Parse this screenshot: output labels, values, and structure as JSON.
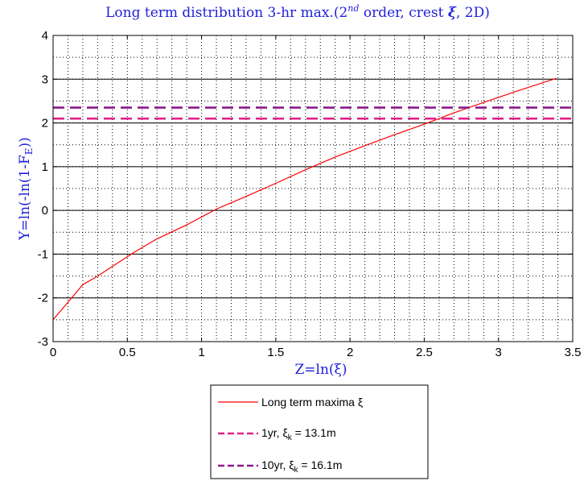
{
  "chart_data": {
    "type": "line",
    "title": {
      "prefix": "Long term distribution 3-hr max.(2",
      "sup": "nd",
      "middle": " order, crest ",
      "symbol": "ξ",
      "suffix": ", 2D)"
    },
    "xlabel": "Z=ln(ξ)",
    "ylabel": "Y=ln(-ln(1-F",
    "ylabel_sub": "E",
    "ylabel_close": "))",
    "xlim": [
      0,
      3.5
    ],
    "ylim": [
      -3,
      4
    ],
    "xticks": [
      "0",
      "0.5",
      "1",
      "1.5",
      "2",
      "2.5",
      "3",
      "3.5"
    ],
    "yticks": [
      "-3",
      "-2",
      "-1",
      "0",
      "1",
      "2",
      "3",
      "4"
    ],
    "grid": {
      "major_y_solid": [
        -2,
        -1,
        0,
        1,
        2,
        3
      ],
      "minor_dotted": true
    },
    "series": [
      {
        "name": "Long term maxima ξ",
        "color": "#ff0000",
        "style": "solid",
        "x": [
          0,
          0.1,
          0.2,
          0.3,
          0.4,
          0.55,
          0.7,
          0.9,
          1.1,
          1.3,
          1.5,
          1.7,
          1.9,
          2.1,
          2.3,
          2.5,
          2.7,
          2.9,
          3.1,
          3.3,
          3.39
        ],
        "y": [
          -2.5,
          -2.1,
          -1.7,
          -1.5,
          -1.28,
          -0.95,
          -0.65,
          -0.33,
          0.03,
          0.32,
          0.62,
          0.93,
          1.22,
          1.48,
          1.73,
          1.97,
          2.23,
          2.47,
          2.7,
          2.92,
          3.02
        ]
      },
      {
        "name": "1yr, ξ",
        "sub": "k",
        "value_text": " = 13.1m",
        "color": "#e0218a",
        "style": "dashed",
        "y_constant": 2.1
      },
      {
        "name": "10yr, ξ",
        "sub": "k",
        "value_text": " = 16.1m",
        "color": "#8b1a8b",
        "style": "dashed",
        "y_constant": 2.35
      }
    ],
    "legend_placement": "bottom-center"
  }
}
